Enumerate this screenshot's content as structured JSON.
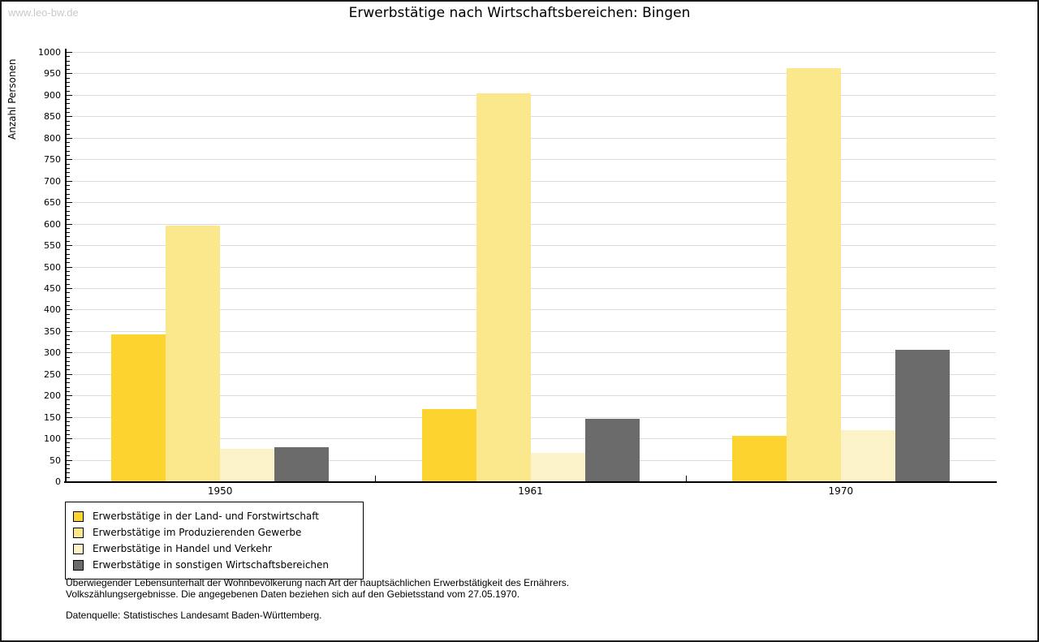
{
  "watermark": "www.leo-bw.de",
  "title": "Erwerbstätige nach Wirtschaftsbereichen: Bingen",
  "chart_data": {
    "type": "bar",
    "title": "Erwerbstätige nach Wirtschaftsbereichen: Bingen",
    "xlabel": "",
    "ylabel": "Anzahl Personen",
    "ylim": [
      0,
      1000
    ],
    "ytick_step": 50,
    "yminor_step": 10,
    "grid": true,
    "legend_position": "bottom-left",
    "categories": [
      "1950",
      "1961",
      "1970"
    ],
    "series": [
      {
        "name": "Erwerbstätige in der Land- und Forstwirtschaft",
        "color": "#fcd32f",
        "values": [
          343,
          168,
          106
        ]
      },
      {
        "name": "Erwerbstätige im Produzierenden Gewerbe",
        "color": "#fbe78c",
        "values": [
          595,
          903,
          963
        ]
      },
      {
        "name": "Erwerbstätige in Handel und Verkehr",
        "color": "#fbf2c7",
        "values": [
          75,
          66,
          120
        ]
      },
      {
        "name": "Erwerbstätige in sonstigen Wirtschaftsbereichen",
        "color": "#6b6b6b",
        "values": [
          80,
          145,
          307
        ]
      }
    ]
  },
  "colors": {
    "gridline": "#dcdcdc",
    "axis": "#000000",
    "watermark": "#c9c9c9"
  },
  "footnotes": {
    "line1": "Überwiegender Lebensunterhalt der Wohnbevölkerung nach Art der hauptsächlichen Erwerbstätigkeit des Ernährers.",
    "line2": "Volkszählungsergebnisse. Die angegebenen Daten beziehen sich auf den Gebietsstand vom 27.05.1970.",
    "source": "Datenquelle: Statistisches Landesamt Baden-Württemberg."
  }
}
